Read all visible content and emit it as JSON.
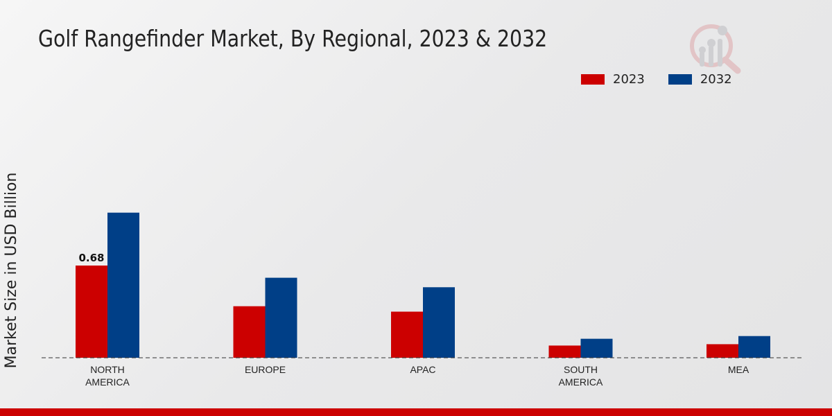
{
  "chart_data": {
    "type": "bar",
    "title": "Golf Rangefinder Market, By Regional, 2023 & 2032",
    "xlabel": "",
    "ylabel": "Market Size in USD Billion",
    "categories": [
      "NORTH\nAMERICA",
      "EUROPE",
      "APAC",
      "SOUTH\nAMERICA",
      "MEA"
    ],
    "series": [
      {
        "name": "2023",
        "color": "#cc0000",
        "values": [
          0.68,
          0.38,
          0.34,
          0.09,
          0.1
        ]
      },
      {
        "name": "2032",
        "color": "#003f87",
        "values": [
          1.07,
          0.59,
          0.52,
          0.14,
          0.16
        ]
      }
    ],
    "data_labels": [
      {
        "series": "2023",
        "category_index": 0,
        "text": "0.68"
      }
    ],
    "ylim": [
      0,
      1.3
    ],
    "grid": false,
    "legend_position": "top-right"
  }
}
